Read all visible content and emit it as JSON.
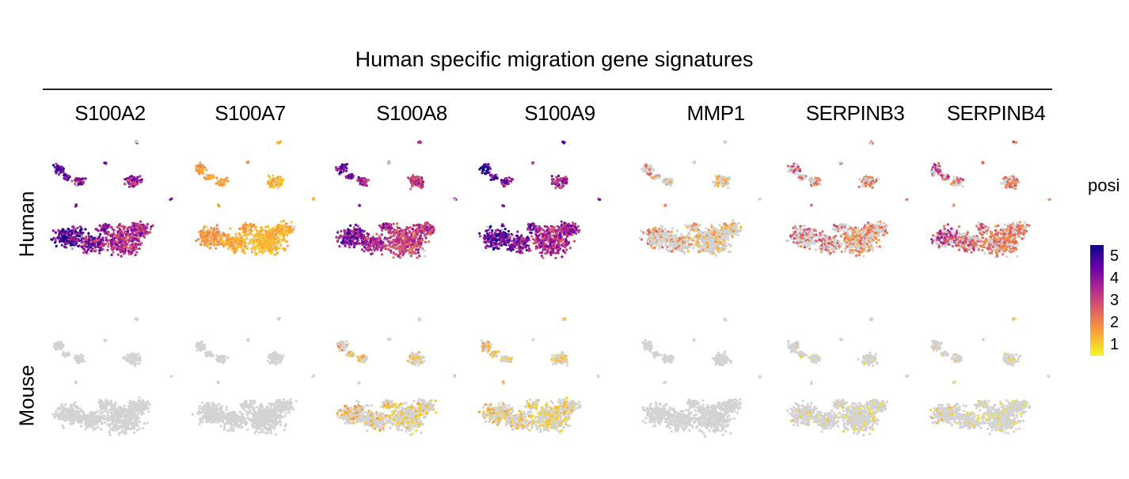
{
  "chart_data": {
    "type": "scatter",
    "title": "Human specific migration gene signatures",
    "genes": [
      "S100A2",
      "S100A7",
      "S100A8",
      "S100A9",
      "MMP1",
      "SERPINB3",
      "SERPINB4"
    ],
    "rows": [
      "Human",
      "Mouse"
    ],
    "legend": {
      "title": "posi",
      "ticks": [
        5,
        4,
        3,
        2,
        1
      ],
      "range": [
        0.5,
        5.5
      ],
      "placement": "right",
      "colors": [
        "#0d0887",
        "#6a00a8",
        "#b12a90",
        "#e16462",
        "#fca636",
        "#f0f921"
      ]
    },
    "background_color": "#d3d3d3",
    "expression_level": {
      "Human": {
        "S100A2": 4.0,
        "S100A7": 1.5,
        "S100A8": 3.6,
        "S100A9": 4.1,
        "MMP1": 1.8,
        "SERPINB3": 2.4,
        "SERPINB4": 2.6
      },
      "Mouse": {
        "S100A2": 0.0,
        "S100A7": 0.0,
        "S100A8": 1.3,
        "S100A9": 1.2,
        "MMP1": 0.0,
        "SERPINB3": 1.0,
        "SERPINB4": 1.0
      }
    },
    "expression_fraction": {
      "Human": {
        "S100A2": 0.95,
        "S100A7": 0.9,
        "S100A8": 0.95,
        "S100A9": 0.95,
        "MMP1": 0.3,
        "SERPINB3": 0.45,
        "SERPINB4": 0.6
      },
      "Mouse": {
        "S100A2": 0.01,
        "S100A7": 0.01,
        "S100A8": 0.3,
        "S100A9": 0.35,
        "MMP1": 0.01,
        "SERPINB3": 0.1,
        "SERPINB4": 0.1
      }
    }
  }
}
